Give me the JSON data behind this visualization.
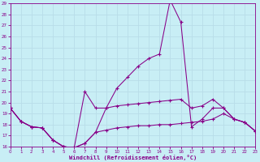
{
  "bg_color": "#c8eef5",
  "grid_color": "#aadddd",
  "line_color": "#880088",
  "xlabel": "Windchill (Refroidissement éolien,°C)",
  "xlim": [
    0,
    23
  ],
  "ylim": [
    16,
    29
  ],
  "xticks": [
    0,
    1,
    2,
    3,
    4,
    5,
    6,
    7,
    8,
    9,
    10,
    11,
    12,
    13,
    14,
    15,
    16,
    17,
    18,
    19,
    20,
    21,
    22,
    23
  ],
  "yticks": [
    16,
    17,
    18,
    19,
    20,
    21,
    22,
    23,
    24,
    25,
    26,
    27,
    28,
    29
  ],
  "line1_x": [
    0,
    1,
    2,
    3,
    4,
    5,
    6,
    7,
    8,
    9,
    10,
    11,
    12,
    13,
    14,
    15,
    16,
    17,
    18,
    19,
    20,
    21,
    22,
    23
  ],
  "line1_y": [
    19.5,
    18.3,
    17.8,
    17.7,
    16.6,
    16.0,
    15.9,
    16.3,
    17.3,
    19.5,
    21.3,
    22.3,
    23.3,
    24.0,
    24.4,
    29.3,
    27.3,
    17.8,
    18.5,
    19.5,
    19.5,
    18.5,
    18.2,
    17.4
  ],
  "line2_x": [
    0,
    1,
    2,
    3,
    4,
    5,
    6,
    7,
    8,
    9,
    10,
    11,
    12,
    13,
    14,
    15,
    16,
    17,
    18,
    19,
    20,
    21,
    22,
    23
  ],
  "line2_y": [
    19.5,
    18.3,
    17.8,
    17.7,
    16.6,
    16.0,
    15.9,
    21.0,
    19.5,
    19.5,
    19.7,
    19.8,
    19.9,
    20.0,
    20.1,
    20.2,
    20.3,
    19.5,
    19.7,
    20.3,
    19.5,
    18.5,
    18.2,
    17.4
  ],
  "line3_x": [
    0,
    1,
    2,
    3,
    4,
    5,
    6,
    7,
    8,
    9,
    10,
    11,
    12,
    13,
    14,
    15,
    16,
    17,
    18,
    19,
    20,
    21,
    22,
    23
  ],
  "line3_y": [
    19.5,
    18.3,
    17.8,
    17.7,
    16.6,
    16.0,
    15.9,
    16.3,
    17.3,
    17.5,
    17.7,
    17.8,
    17.9,
    17.9,
    18.0,
    18.0,
    18.1,
    18.2,
    18.3,
    18.5,
    19.0,
    18.5,
    18.2,
    17.4
  ]
}
